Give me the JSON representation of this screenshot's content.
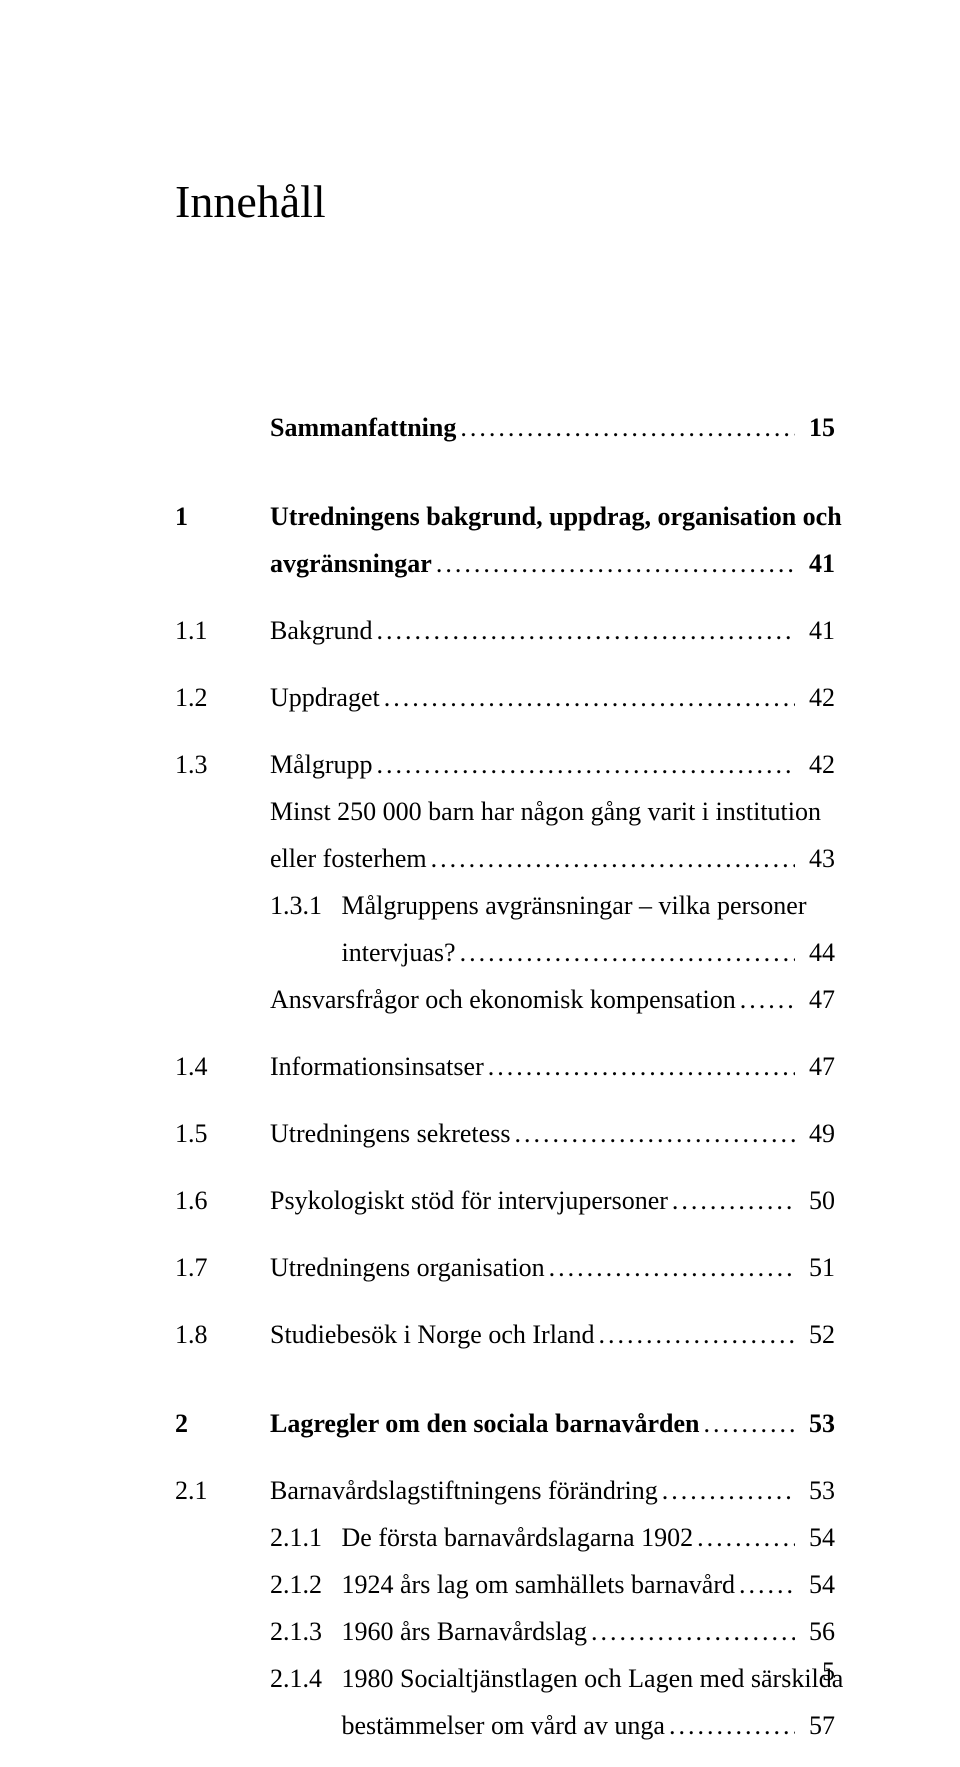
{
  "title": "Innehåll",
  "dots": "...................................................................................................",
  "entries": [
    {
      "num": "",
      "text": "Sammanfattning",
      "page": "15",
      "bold": true,
      "spaceAbove": "none",
      "cont": null
    },
    {
      "num": "1",
      "text": "Utredningens bakgrund, uppdrag, organisation och",
      "page": "",
      "bold": true,
      "spaceAbove": "lg",
      "cont": {
        "text": "avgränsningar",
        "page": "41"
      }
    },
    {
      "num": "1.1",
      "text": "Bakgrund",
      "page": "41",
      "bold": false,
      "spaceAbove": "md",
      "cont": null
    },
    {
      "num": "1.2",
      "text": "Uppdraget",
      "page": "42",
      "bold": false,
      "spaceAbove": "md",
      "cont": null
    },
    {
      "num": "1.3",
      "text": "Målgrupp",
      "page": "42",
      "bold": false,
      "spaceAbove": "md",
      "cont": null
    },
    {
      "num": "",
      "text": "Minst 250 000 barn har någon gång varit i institution",
      "page": "",
      "bold": false,
      "spaceAbove": "none",
      "cont": {
        "text": "eller fosterhem",
        "page": "43"
      }
    },
    {
      "num": "",
      "text": "1.3.1   Målgruppens avgränsningar – vilka personer",
      "page": "",
      "bold": false,
      "spaceAbove": "none",
      "cont": {
        "text": "           intervjuas?",
        "page": "44"
      }
    },
    {
      "num": "",
      "text": "Ansvarsfrågor och ekonomisk kompensation",
      "page": "47",
      "bold": false,
      "spaceAbove": "none",
      "cont": null
    },
    {
      "num": "1.4",
      "text": "Informationsinsatser",
      "page": "47",
      "bold": false,
      "spaceAbove": "md",
      "cont": null
    },
    {
      "num": "1.5",
      "text": "Utredningens sekretess",
      "page": "49",
      "bold": false,
      "spaceAbove": "md",
      "cont": null
    },
    {
      "num": "1.6",
      "text": "Psykologiskt stöd för intervjupersoner",
      "page": "50",
      "bold": false,
      "spaceAbove": "md",
      "cont": null
    },
    {
      "num": "1.7",
      "text": "Utredningens organisation",
      "page": "51",
      "bold": false,
      "spaceAbove": "md",
      "cont": null
    },
    {
      "num": "1.8",
      "text": "Studiebesök i Norge och Irland",
      "page": "52",
      "bold": false,
      "spaceAbove": "md",
      "cont": null
    },
    {
      "num": "2",
      "text": "Lagregler om den sociala barnavården",
      "page": "53",
      "bold": true,
      "spaceAbove": "lg",
      "cont": null
    },
    {
      "num": "2.1",
      "text": "Barnavårdslagstiftningens förändring",
      "page": "53",
      "bold": false,
      "spaceAbove": "md",
      "cont": null
    },
    {
      "num": "",
      "text": "2.1.1   De första barnavårdslagarna 1902",
      "page": "54",
      "bold": false,
      "spaceAbove": "none",
      "cont": null
    },
    {
      "num": "",
      "text": "2.1.2   1924 års lag om samhällets barnavård",
      "page": "54",
      "bold": false,
      "spaceAbove": "none",
      "cont": null
    },
    {
      "num": "",
      "text": "2.1.3   1960 års Barnavårdslag",
      "page": "56",
      "bold": false,
      "spaceAbove": "none",
      "cont": null
    },
    {
      "num": "",
      "text": "2.1.4   1980 Socialtjänstlagen och Lagen med särskilda",
      "page": "",
      "bold": false,
      "spaceAbove": "none",
      "cont": {
        "text": "           bestämmelser om vård av unga",
        "page": "57"
      }
    }
  ],
  "pageNumber": "5"
}
